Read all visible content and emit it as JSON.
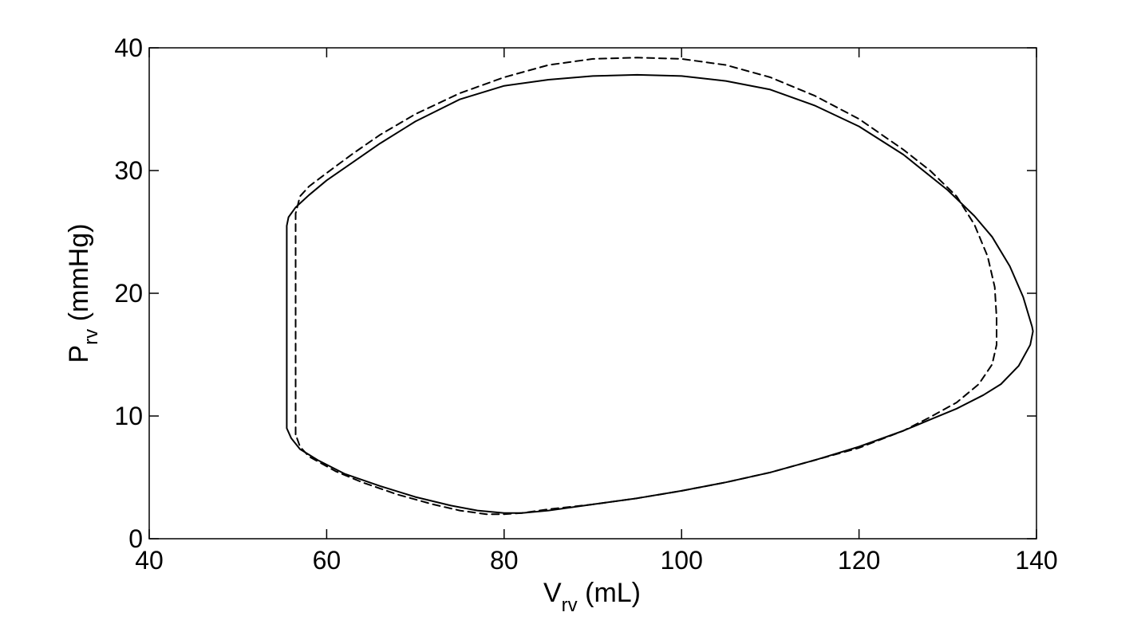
{
  "chart_data": {
    "type": "line",
    "title": "",
    "xlabel": {
      "main": "V",
      "sub": "rv",
      "unit": " (mL)"
    },
    "ylabel": {
      "main": "P",
      "sub": "rv",
      "unit": " (mmHg)"
    },
    "xlim": [
      40,
      140
    ],
    "ylim": [
      0,
      40
    ],
    "xticks": [
      40,
      60,
      80,
      100,
      120,
      140
    ],
    "yticks": [
      0,
      10,
      20,
      30,
      40
    ],
    "grid": false,
    "legend": "none",
    "series": [
      {
        "style": "solid",
        "color": "#000000",
        "x": [
          55.5,
          55.5,
          55.5,
          55.5,
          55.7,
          56.5,
          58,
          60,
          63,
          66,
          70,
          75,
          80,
          85,
          90,
          95,
          100,
          105,
          110,
          115,
          120,
          125,
          130,
          133,
          135,
          137,
          138.5,
          139.5,
          139.6,
          139.3,
          138,
          136,
          134,
          131,
          128,
          125,
          120,
          115,
          110,
          105,
          100,
          95,
          90,
          85,
          82,
          80,
          77,
          74,
          70,
          66,
          62,
          59,
          57,
          56,
          55.5,
          55.5
        ],
        "y": [
          9.5,
          12,
          18,
          25.5,
          26.2,
          27,
          28,
          29.2,
          30.7,
          32.2,
          34,
          35.8,
          36.9,
          37.4,
          37.7,
          37.8,
          37.7,
          37.3,
          36.6,
          35.3,
          33.6,
          31.3,
          28.4,
          26.3,
          24.6,
          22.2,
          19.7,
          17.3,
          16.9,
          15.8,
          14.1,
          12.6,
          11.7,
          10.6,
          9.7,
          8.8,
          7.5,
          6.4,
          5.4,
          4.6,
          3.9,
          3.3,
          2.8,
          2.3,
          2.1,
          2.1,
          2.3,
          2.7,
          3.4,
          4.3,
          5.3,
          6.4,
          7.3,
          8.2,
          9,
          9.5
        ]
      },
      {
        "style": "dashed",
        "color": "#000000",
        "x": [
          56.5,
          56.5,
          56.5,
          57,
          58,
          60,
          63,
          66,
          70,
          75,
          80,
          85,
          90,
          95,
          100,
          105,
          110,
          115,
          120,
          125,
          128,
          131,
          133,
          134.5,
          135.3,
          135.5,
          135.5,
          135,
          133.5,
          131,
          128,
          125,
          120,
          115,
          110,
          105,
          100,
          95,
          90,
          85,
          82,
          80,
          78,
          75,
          72,
          68,
          64,
          61,
          58,
          57,
          56.5
        ],
        "y": [
          8.5,
          15,
          26.5,
          27.9,
          28.7,
          29.8,
          31.4,
          32.9,
          34.6,
          36.3,
          37.6,
          38.6,
          39.1,
          39.2,
          39.1,
          38.6,
          37.6,
          36.1,
          34.2,
          31.7,
          30,
          27.9,
          25.6,
          23,
          20.5,
          18,
          15.8,
          14.2,
          12.6,
          11.1,
          9.9,
          8.8,
          7.4,
          6.4,
          5.4,
          4.6,
          3.9,
          3.3,
          2.8,
          2.4,
          2.1,
          2,
          2,
          2.3,
          2.8,
          3.6,
          4.6,
          5.5,
          6.7,
          7.5,
          8.5
        ]
      }
    ]
  }
}
